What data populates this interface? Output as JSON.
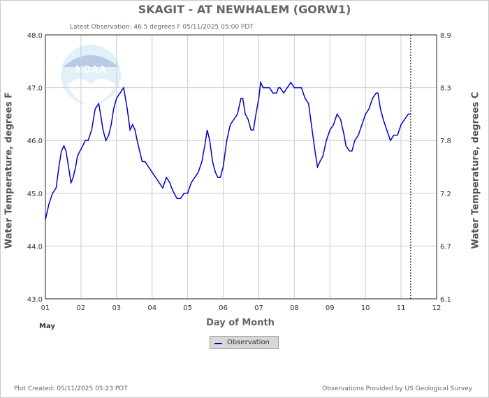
{
  "title": "SKAGIT - AT NEWHALEM  (GORW1)",
  "latest_observation": "Latest Observation: 46.5 degrees F 05/11/2025 05:00 PDT",
  "plot_created": "Plot Created: 05/11/2025 05:23 PDT",
  "provider": "Observations Provided by US Geological Survey",
  "logo_text": "NOAA",
  "colors": {
    "series": "#0000cc",
    "grid": "#cccccc",
    "text": "#555555"
  },
  "chart_data": {
    "type": "line",
    "title": "SKAGIT - AT NEWHALEM  (GORW1)",
    "xlabel": "Day of Month",
    "xlabel_sub": "May",
    "ylabel": "Water Temperature, degrees F",
    "ylabel_right": "Water Temperature, degrees C",
    "xlim": [
      1,
      12
    ],
    "ylim": [
      43.0,
      48.0
    ],
    "x_ticks": [
      "01",
      "02",
      "03",
      "04",
      "05",
      "06",
      "07",
      "08",
      "09",
      "10",
      "11",
      "12"
    ],
    "y_ticks": [
      "43.0",
      "44.0",
      "45.0",
      "46.0",
      "47.0",
      "48.0"
    ],
    "y_ticks_right": [
      {
        "value": 43.0,
        "label": "6.1"
      },
      {
        "value": 44.0,
        "label": "6.7"
      },
      {
        "value": 45.0,
        "label": "7.2"
      },
      {
        "value": 46.0,
        "label": "7.8"
      },
      {
        "value": 47.0,
        "label": "8.3"
      },
      {
        "value": 48.0,
        "label": "8.9"
      }
    ],
    "grid": true,
    "latest_marker_x": 11.27,
    "series": [
      {
        "name": "Observation",
        "x": [
          1.0,
          1.1,
          1.2,
          1.3,
          1.38,
          1.45,
          1.52,
          1.58,
          1.65,
          1.72,
          1.78,
          1.85,
          1.9,
          1.97,
          2.05,
          2.12,
          2.2,
          2.3,
          2.4,
          2.5,
          2.55,
          2.62,
          2.7,
          2.78,
          2.85,
          2.92,
          3.0,
          3.1,
          3.2,
          3.3,
          3.38,
          3.45,
          3.52,
          3.58,
          3.65,
          3.72,
          3.8,
          3.9,
          4.0,
          4.1,
          4.2,
          4.3,
          4.4,
          4.5,
          4.55,
          4.62,
          4.7,
          4.8,
          4.9,
          5.0,
          5.1,
          5.2,
          5.3,
          5.4,
          5.48,
          5.55,
          5.62,
          5.7,
          5.78,
          5.85,
          5.92,
          6.0,
          6.1,
          6.2,
          6.3,
          6.4,
          6.5,
          6.55,
          6.62,
          6.7,
          6.78,
          6.85,
          6.92,
          7.0,
          7.05,
          7.12,
          7.2,
          7.3,
          7.4,
          7.5,
          7.55,
          7.6,
          7.7,
          7.8,
          7.9,
          8.0,
          8.1,
          8.2,
          8.3,
          8.4,
          8.5,
          8.58,
          8.65,
          8.72,
          8.8,
          8.9,
          9.0,
          9.1,
          9.2,
          9.3,
          9.4,
          9.45,
          9.55,
          9.62,
          9.7,
          9.8,
          9.9,
          10.0,
          10.1,
          10.2,
          10.3,
          10.35,
          10.42,
          10.5,
          10.6,
          10.7,
          10.8,
          10.9,
          11.0,
          11.1,
          11.2,
          11.27
        ],
        "values": [
          44.5,
          44.8,
          45.0,
          45.1,
          45.5,
          45.8,
          45.9,
          45.8,
          45.5,
          45.2,
          45.3,
          45.5,
          45.7,
          45.8,
          45.9,
          46.0,
          46.0,
          46.2,
          46.6,
          46.7,
          46.5,
          46.2,
          46.0,
          46.1,
          46.3,
          46.6,
          46.8,
          46.9,
          47.0,
          46.6,
          46.2,
          46.3,
          46.2,
          46.0,
          45.8,
          45.6,
          45.6,
          45.5,
          45.4,
          45.3,
          45.2,
          45.1,
          45.3,
          45.2,
          45.1,
          45.0,
          44.9,
          44.9,
          45.0,
          45.0,
          45.2,
          45.3,
          45.4,
          45.6,
          45.9,
          46.2,
          46.0,
          45.6,
          45.4,
          45.3,
          45.3,
          45.5,
          46.0,
          46.3,
          46.4,
          46.5,
          46.8,
          46.8,
          46.5,
          46.4,
          46.2,
          46.2,
          46.5,
          46.8,
          47.1,
          47.0,
          47.0,
          47.0,
          46.9,
          46.9,
          47.0,
          47.0,
          46.9,
          47.0,
          47.1,
          47.0,
          47.0,
          47.0,
          46.8,
          46.7,
          46.2,
          45.8,
          45.5,
          45.6,
          45.7,
          46.0,
          46.2,
          46.3,
          46.5,
          46.4,
          46.1,
          45.9,
          45.8,
          45.8,
          46.0,
          46.1,
          46.3,
          46.5,
          46.6,
          46.8,
          46.9,
          46.9,
          46.6,
          46.4,
          46.2,
          46.0,
          46.1,
          46.1,
          46.3,
          46.4,
          46.5,
          46.5
        ]
      }
    ]
  }
}
